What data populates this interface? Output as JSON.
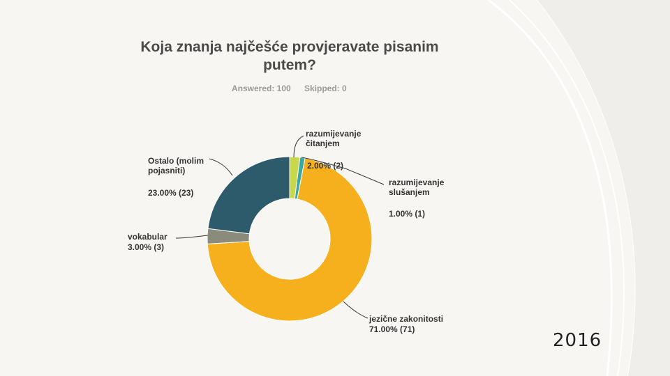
{
  "slide": {
    "year": "2016",
    "curve_color": "#ffffff"
  },
  "chart_data": {
    "type": "pie",
    "variant": "donut",
    "title": "Koja znanja najčešće provjeravate pisanim putem?",
    "title_lines": [
      "Koja znanja najčešće provjeravate pisanim",
      "putem?"
    ],
    "answered_label": "Answered: 100",
    "skipped_label": "Skipped: 0",
    "slices": [
      {
        "label_lines": [
          "razumijevanje",
          "čitanjem"
        ],
        "value": 2,
        "percent_text": "2.00% (2)",
        "color": "#c8d84a"
      },
      {
        "label_lines": [
          "razumijevanje",
          "slušanjem"
        ],
        "value": 1,
        "percent_text": "1.00% (1)",
        "color": "#3aa7a0"
      },
      {
        "label_lines": [
          "jezične zakonitosti"
        ],
        "value": 71,
        "percent_text": "71.00% (71)",
        "color": "#f6b01e"
      },
      {
        "label_lines": [
          "vokabular"
        ],
        "value": 3,
        "percent_text": "3.00% (3)",
        "color": "#8b8b7c"
      },
      {
        "label_lines": [
          "Ostalo (molim",
          "pojasniti)"
        ],
        "value": 23,
        "percent_text": "23.00% (23)",
        "color": "#2e5b6b"
      }
    ]
  }
}
